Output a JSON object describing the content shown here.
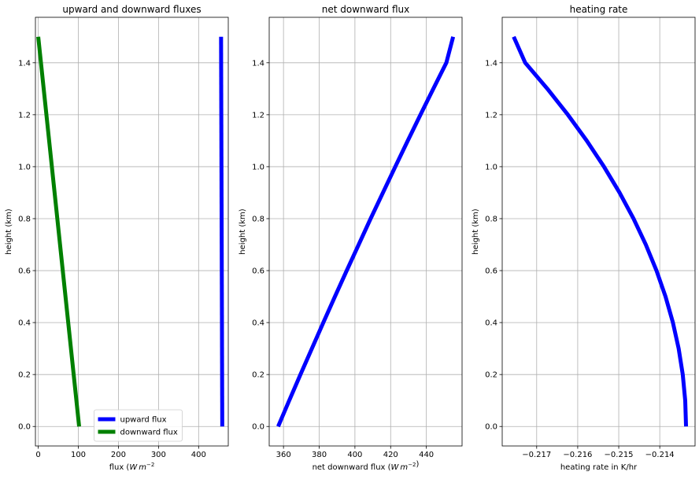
{
  "chart_data": [
    {
      "type": "line",
      "title": "upward and downward fluxes",
      "xlabel": "flux ($W\\,m^{-2}$",
      "ylabel": "height (km)",
      "xlim": [
        -7,
        474
      ],
      "ylim": [
        -0.075,
        1.575
      ],
      "xticks": [
        0,
        100,
        200,
        300,
        400
      ],
      "xticklabels": [
        "0",
        "100",
        "200",
        "300",
        "400"
      ],
      "yticks": [
        0.0,
        0.2,
        0.4,
        0.6,
        0.8,
        1.0,
        1.2,
        1.4
      ],
      "yticklabels": [
        "0.0",
        "0.2",
        "0.4",
        "0.6",
        "0.8",
        "1.0",
        "1.2",
        "1.4"
      ],
      "grid": true,
      "legend": "lower center",
      "series": [
        {
          "name": "upward flux",
          "color": "#0000ff",
          "x": [
            459,
            456
          ],
          "y": [
            0.0,
            1.5
          ]
        },
        {
          "name": "downward flux",
          "color": "#008000",
          "x": [
            102,
            0
          ],
          "y": [
            0.0,
            1.5
          ]
        }
      ]
    },
    {
      "type": "line",
      "title": "net downward flux",
      "xlabel": "net downward flux ($W\\,m^{-2}$)",
      "ylabel": "height (km)",
      "xlim": [
        352,
        460
      ],
      "ylim": [
        -0.075,
        1.575
      ],
      "xticks": [
        360,
        380,
        400,
        420,
        440
      ],
      "xticklabels": [
        "360",
        "380",
        "400",
        "420",
        "440"
      ],
      "yticks": [
        0.0,
        0.2,
        0.4,
        0.6,
        0.8,
        1.0,
        1.2,
        1.4
      ],
      "yticklabels": [
        "0.0",
        "0.2",
        "0.4",
        "0.6",
        "0.8",
        "1.0",
        "1.2",
        "1.4"
      ],
      "grid": true,
      "series": [
        {
          "color": "#0000ff",
          "x": [
            357,
            363.2,
            369.5,
            375.9,
            382.3,
            388.8,
            395.4,
            402.1,
            408.8,
            415.7,
            422.6,
            429.6,
            436.7,
            443.9,
            451.2,
            455
          ],
          "y": [
            0.0,
            0.1,
            0.2,
            0.3,
            0.4,
            0.5,
            0.6,
            0.7,
            0.8,
            0.9,
            1.0,
            1.1,
            1.2,
            1.3,
            1.4,
            1.5
          ]
        }
      ]
    },
    {
      "type": "line",
      "title": "heating rate",
      "xlabel": "heating rate in K/hr",
      "ylabel": "height (km)",
      "xlim": [
        -0.21784,
        -0.21314
      ],
      "ylim": [
        -0.075,
        1.575
      ],
      "xticks": [
        -0.217,
        -0.216,
        -0.215,
        -0.214
      ],
      "xticklabels": [
        "−0.217",
        "−0.216",
        "−0.215",
        "−0.214"
      ],
      "yticks": [
        0.0,
        0.2,
        0.4,
        0.6,
        0.8,
        1.0,
        1.2,
        1.4
      ],
      "yticklabels": [
        "0.0",
        "0.2",
        "0.4",
        "0.6",
        "0.8",
        "1.0",
        "1.2",
        "1.4"
      ],
      "grid": true,
      "series": [
        {
          "color": "#0000ff",
          "x": [
            -0.21336,
            -0.21338,
            -0.21344,
            -0.21354,
            -0.21368,
            -0.21386,
            -0.21408,
            -0.21434,
            -0.21464,
            -0.21498,
            -0.21536,
            -0.21578,
            -0.21624,
            -0.21674,
            -0.21728,
            -0.21756
          ],
          "y": [
            0.0,
            0.1,
            0.2,
            0.3,
            0.4,
            0.5,
            0.6,
            0.7,
            0.8,
            0.9,
            1.0,
            1.1,
            1.2,
            1.3,
            1.4,
            1.5
          ]
        }
      ]
    }
  ]
}
